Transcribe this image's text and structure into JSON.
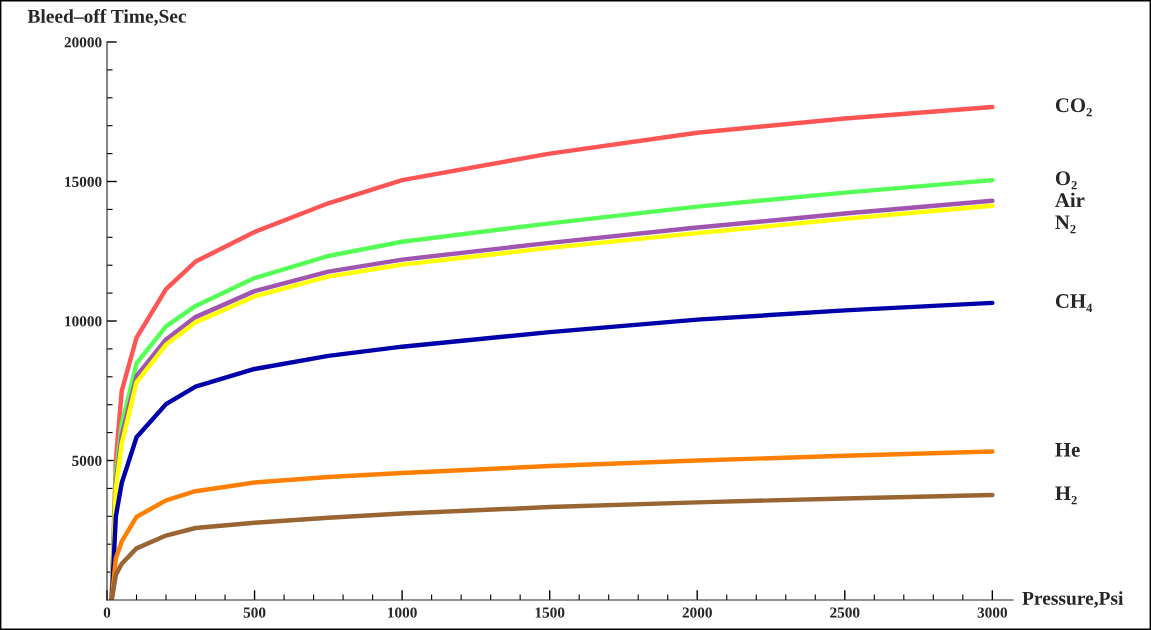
{
  "chart_data": {
    "type": "line",
    "xlabel": "Pressure,Psi",
    "ylabel": "Bleed–off Time,Sec",
    "x": [
      16,
      30,
      50,
      100,
      200,
      300,
      500,
      750,
      1000,
      1500,
      2000,
      2500,
      3000
    ],
    "series": [
      {
        "name": "CO₂",
        "color": "#ff5555",
        "values": [
          0,
          5000,
          7500,
          9400,
          11140,
          12130,
          13190,
          14220,
          15050,
          16000,
          16750,
          17260,
          17670
        ]
      },
      {
        "name": "O₂",
        "color": "#55ff55",
        "values": [
          0,
          4500,
          6300,
          8480,
          9810,
          10540,
          11540,
          12330,
          12840,
          13500,
          14100,
          14600,
          15050
        ]
      },
      {
        "name": "Air",
        "color": "#a055b0",
        "values": [
          0,
          4200,
          5900,
          8020,
          9340,
          10140,
          11070,
          11770,
          12200,
          12800,
          13350,
          13850,
          14310
        ]
      },
      {
        "name": "N₂",
        "color": "#ffff00",
        "values": [
          0,
          4000,
          5600,
          7800,
          9150,
          9950,
          10880,
          11590,
          12020,
          12620,
          13150,
          13660,
          14130
        ]
      },
      {
        "name": "CH₄",
        "color": "#0000aa",
        "values": [
          0,
          3000,
          4200,
          5830,
          7020,
          7650,
          8280,
          8750,
          9080,
          9600,
          10050,
          10380,
          10650
        ]
      },
      {
        "name": "He",
        "color": "#ff8000",
        "values": [
          0,
          1500,
          2100,
          2980,
          3570,
          3900,
          4210,
          4410,
          4550,
          4800,
          5000,
          5170,
          5320
        ]
      },
      {
        "name": "H₂",
        "color": "#996633",
        "values": [
          0,
          900,
          1300,
          1850,
          2310,
          2580,
          2770,
          2950,
          3100,
          3330,
          3500,
          3640,
          3760
        ]
      }
    ],
    "xlim": [
      0,
      3070
    ],
    "ylim": [
      0,
      20000
    ],
    "xticks": [
      0,
      {
        "value": 100,
        "label": null
      },
      {
        "value": 200,
        "label": null
      },
      {
        "value": 300,
        "label": null
      },
      {
        "value": 400,
        "label": null
      },
      500,
      {
        "value": 600,
        "label": null
      },
      {
        "value": 700,
        "label": null
      },
      {
        "value": 800,
        "label": null
      },
      {
        "value": 900,
        "label": null
      },
      1000,
      {
        "value": 1100,
        "label": null
      },
      {
        "value": 1200,
        "label": null
      },
      {
        "value": 1300,
        "label": null
      },
      {
        "value": 1400,
        "label": null
      },
      1500,
      {
        "value": 1600,
        "label": null
      },
      {
        "value": 1700,
        "label": null
      },
      {
        "value": 1800,
        "label": null
      },
      {
        "value": 1900,
        "label": null
      },
      2000,
      {
        "value": 2100,
        "label": null
      },
      {
        "value": 2200,
        "label": null
      },
      {
        "value": 2300,
        "label": null
      },
      {
        "value": 2400,
        "label": null
      },
      2500,
      {
        "value": 2600,
        "label": null
      },
      {
        "value": 2700,
        "label": null
      },
      {
        "value": 2800,
        "label": null
      },
      {
        "value": 2900,
        "label": null
      },
      3000
    ],
    "yticks": [
      {
        "value": 1000,
        "label": null
      },
      {
        "value": 2000,
        "label": null
      },
      {
        "value": 3000,
        "label": null
      },
      {
        "value": 4000,
        "label": null
      },
      5000,
      {
        "value": 6000,
        "label": null
      },
      {
        "value": 7000,
        "label": null
      },
      {
        "value": 8000,
        "label": null
      },
      {
        "value": 9000,
        "label": null
      },
      10000,
      {
        "value": 11000,
        "label": null
      },
      {
        "value": 12000,
        "label": null
      },
      {
        "value": 13000,
        "label": null
      },
      {
        "value": 14000,
        "label": null
      },
      15000,
      {
        "value": 16000,
        "label": null
      },
      {
        "value": 17000,
        "label": null
      },
      {
        "value": 18000,
        "label": null
      },
      {
        "value": 19000,
        "label": null
      },
      20000
    ],
    "grid": false,
    "legend": false
  }
}
